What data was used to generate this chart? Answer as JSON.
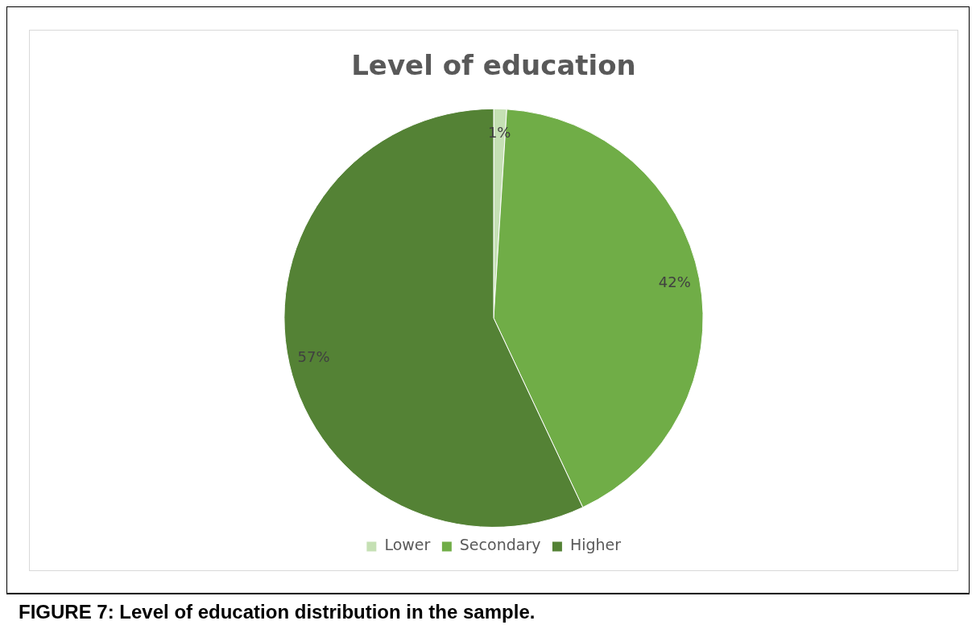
{
  "chart_data": {
    "type": "pie",
    "title": "Level of education",
    "categories": [
      "Lower",
      "Secondary",
      "Higher"
    ],
    "values": [
      1,
      42,
      57
    ],
    "colors": [
      "#c5e0b4",
      "#70ad47",
      "#548235"
    ],
    "value_labels": [
      "1%",
      "42%",
      "57%"
    ],
    "legend": "bottom",
    "annotations": [
      "FIGURE 7: Level of education distribution in the sample."
    ]
  }
}
